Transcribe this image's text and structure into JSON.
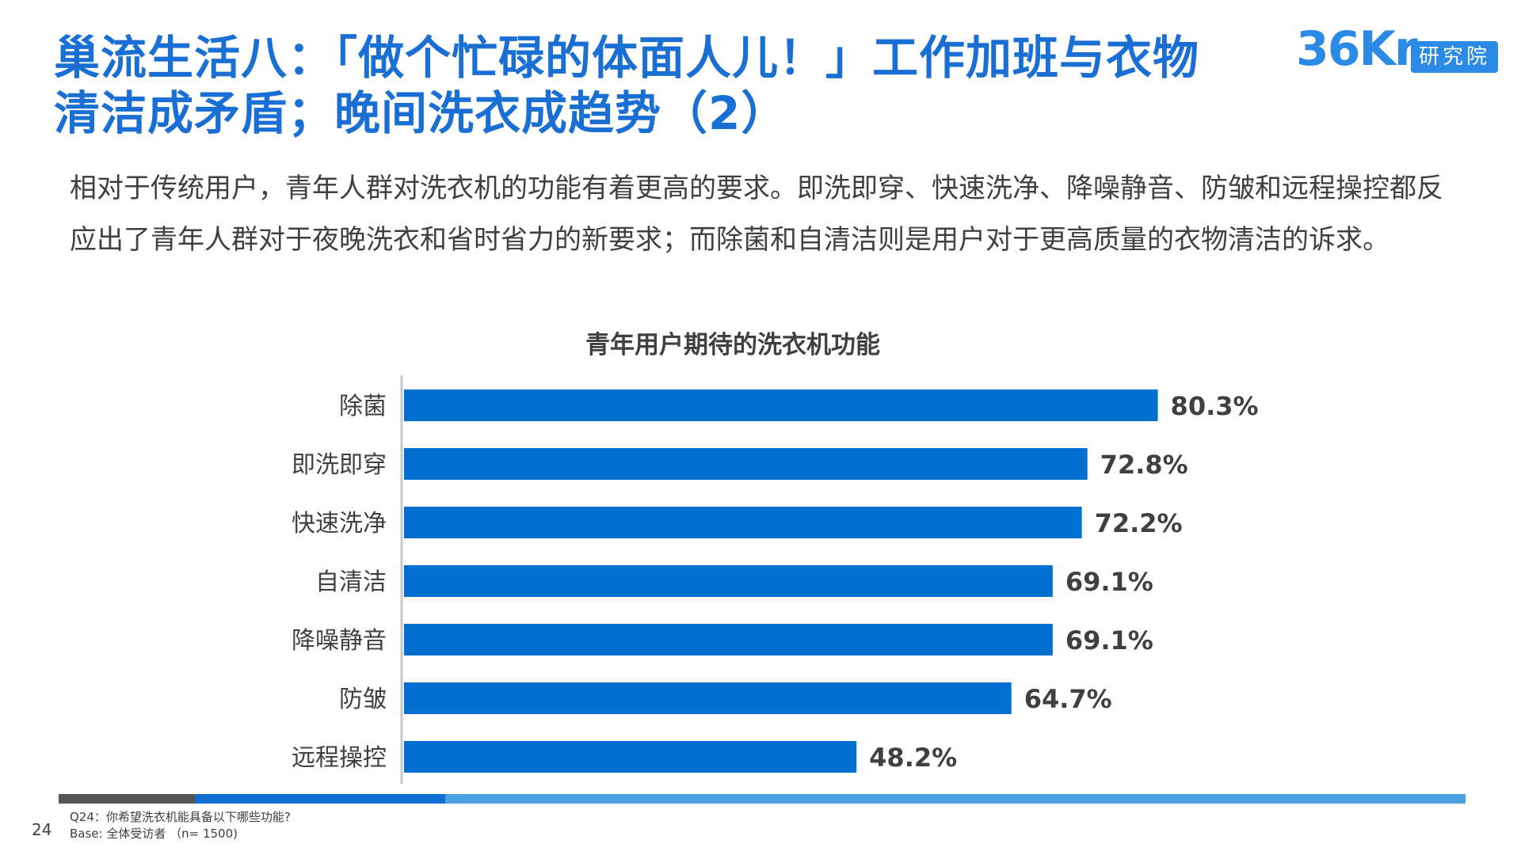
{
  "header": {
    "title": "巢流生活八：「做个忙碌的体面人儿！」工作加班与衣物清洁成矛盾；晚间洗衣成趋势（2）",
    "logo_text": "36Kr",
    "logo_badge": "研究院"
  },
  "intro": {
    "text": "相对于传统用户，青年人群对洗衣机的功能有着更高的要求。即洗即穿、快速洗净、降噪静音、防皱和远程操控都反应出了青年人群对于夜晚洗衣和省时省力的新要求；而除菌和自清洁则是用户对于更高质量的衣物清洁的诉求。"
  },
  "chart_data": {
    "type": "bar",
    "orientation": "horizontal",
    "title": "青年用户期待的洗衣机功能",
    "categories": [
      "除菌",
      "即洗即穿",
      "快速洗净",
      "自清洁",
      "降噪静音",
      "防皱",
      "远程操控"
    ],
    "values": [
      80.3,
      72.8,
      72.2,
      69.1,
      69.1,
      64.7,
      48.2
    ],
    "value_labels": [
      "80.3%",
      "72.8%",
      "72.2%",
      "69.1%",
      "69.1%",
      "64.7%",
      "48.2%"
    ],
    "unit": "%",
    "xlim": [
      0,
      100
    ],
    "bar_color": "#0070d0",
    "axis_color": "#c8c8c8"
  },
  "footer": {
    "page_number": "24",
    "question": "Q24：你希望洗衣机能具备以下哪些功能?",
    "base": "Base: 全体受访者 （n= 1500)"
  }
}
